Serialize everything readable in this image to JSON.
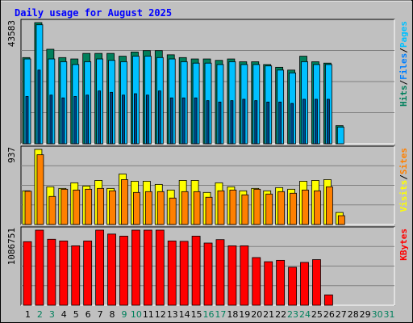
{
  "chart_data": {
    "type": "bar",
    "title": "Daily usage for August 2025",
    "colors": {
      "hits": "#00805c",
      "files": "#0080ff",
      "pages": "#00c0ff",
      "visits": "#ffff00",
      "sites": "#ff8000",
      "kbytes": "#ff0000",
      "title": "#0000ff",
      "weekend_day": "#00805c",
      "weekday": "#000000"
    },
    "categories": [
      "1",
      "2",
      "3",
      "4",
      "5",
      "6",
      "7",
      "8",
      "9",
      "10",
      "11",
      "12",
      "13",
      "14",
      "15",
      "16",
      "17",
      "18",
      "19",
      "20",
      "21",
      "22",
      "23",
      "24",
      "25",
      "26",
      "27",
      "28",
      "29",
      "30",
      "31"
    ],
    "weekend_days": [
      "2",
      "3",
      "9",
      "10",
      "16",
      "17",
      "23",
      "24",
      "30",
      "31"
    ],
    "panels": [
      {
        "id": "hits-panel",
        "max_label": "43583",
        "ymax": 43583,
        "legend": [
          "Hits",
          "Files",
          "Pages"
        ],
        "series": [
          {
            "name": "Hits",
            "values": [
              31000,
              43583,
              34000,
              31000,
              30500,
              32500,
              32500,
              32500,
              31500,
              33000,
              33500,
              33500,
              32000,
              31000,
              30500,
              30500,
              30000,
              30500,
              29500,
              29500,
              28500,
              27500,
              26500,
              31500,
              29500,
              29000,
              6500,
              0,
              0,
              0,
              0
            ]
          },
          {
            "name": "Files",
            "values": [
              17000,
              26500,
              17500,
              16500,
              17000,
              17500,
              19000,
              18500,
              17500,
              18000,
              17500,
              19000,
              16500,
              16500,
              16500,
              15500,
              15000,
              15500,
              16000,
              15500,
              15000,
              15000,
              14500,
              16000,
              16000,
              16000,
              0,
              0,
              0,
              0,
              0
            ]
          },
          {
            "name": "Pages",
            "values": [
              30500,
              42800,
              30500,
              29500,
              28500,
              29500,
              30500,
              30000,
              29500,
              31500,
              31500,
              31000,
              30500,
              29500,
              29000,
              29000,
              28500,
              29500,
              28500,
              28500,
              28000,
              26500,
              25500,
              29500,
              28500,
              28500,
              6000,
              0,
              0,
              0,
              0
            ]
          }
        ]
      },
      {
        "id": "visits-panel",
        "max_label": "937",
        "ymax": 937,
        "legend": [
          "Visits",
          "Sites"
        ],
        "series": [
          {
            "name": "Visits",
            "values": [
              420,
              937,
              470,
              450,
              520,
              480,
              550,
              450,
              630,
              540,
              540,
              500,
              430,
              550,
              550,
              400,
              520,
              470,
              420,
              450,
              420,
              460,
              440,
              540,
              550,
              560,
              150,
              0,
              0,
              0,
              0
            ]
          },
          {
            "name": "Sites",
            "values": [
              415,
              870,
              350,
              440,
              430,
              440,
              450,
              420,
              560,
              400,
              410,
              410,
              330,
              410,
              410,
              340,
              420,
              430,
              370,
              440,
              380,
              410,
              390,
              430,
              420,
              470,
              110,
              0,
              0,
              0,
              0
            ]
          }
        ]
      },
      {
        "id": "kbytes-panel",
        "max_label": "1086751",
        "ymax": 1086751,
        "legend": [
          "KBytes"
        ],
        "series": [
          {
            "name": "KBytes",
            "values": [
              920000,
              1086751,
              955000,
              930000,
              860000,
              930000,
              1086751,
              1030000,
              1000000,
              1086751,
              1086751,
              1086751,
              930000,
              925000,
              1000000,
              900000,
              950000,
              860000,
              860000,
              690000,
              630000,
              650000,
              550000,
              620000,
              660000,
              150000,
              0,
              0,
              0,
              0,
              0
            ]
          }
        ]
      }
    ]
  }
}
